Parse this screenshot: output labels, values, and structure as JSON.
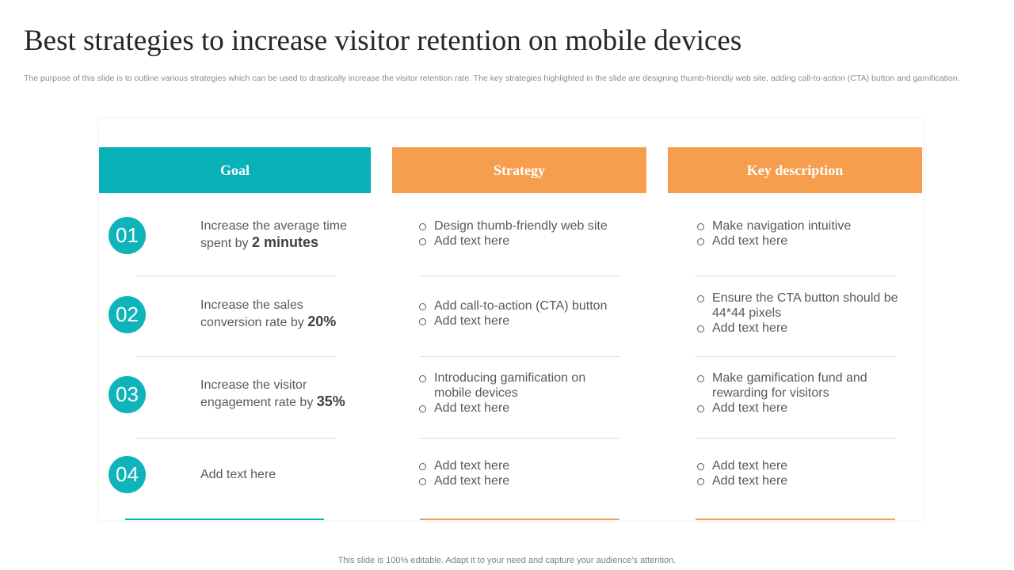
{
  "title": "Best strategies to increase visitor retention on mobile devices",
  "subtitle": "The purpose of this slide is to outline various strategies which can be used to drastically increase the visitor retention rate. The key strategies highlighted in the slide are designing thumb-friendly web site, adding call-to-action (CTA) button and gamification.",
  "headers": {
    "goal": "Goal",
    "strategy": "Strategy",
    "key": "Key description"
  },
  "colors": {
    "teal": "#08b0b7",
    "orange": "#f59e4d"
  },
  "rows": [
    {
      "number": "01",
      "goal_text": "Increase the average time spent by ",
      "goal_highlight": "2 minutes",
      "strategy": [
        "Design thumb-friendly  web site",
        "Add text here"
      ],
      "key": [
        "Make navigation intuitive",
        "Add text here"
      ]
    },
    {
      "number": "02",
      "goal_text": "Increase the sales conversion rate by ",
      "goal_highlight": "20%",
      "strategy": [
        "Add call-to-action (CTA) button",
        "Add text here"
      ],
      "key": [
        "Ensure the CTA button should be 44*44 pixels",
        "Add text here"
      ]
    },
    {
      "number": "03",
      "goal_text": "Increase the visitor engagement rate by ",
      "goal_highlight": "35%",
      "strategy": [
        "Introducing gamification on mobile devices",
        "Add text here"
      ],
      "key": [
        "Make gamification fund and rewarding for visitors",
        "Add text here"
      ]
    },
    {
      "number": "04",
      "goal_text": "Add text here",
      "goal_highlight": "",
      "strategy": [
        "Add text here",
        "Add text here"
      ],
      "key": [
        "Add text here",
        "Add text here"
      ]
    }
  ],
  "footer": "This slide is 100% editable. Adapt it to your need and capture your audience’s attention."
}
